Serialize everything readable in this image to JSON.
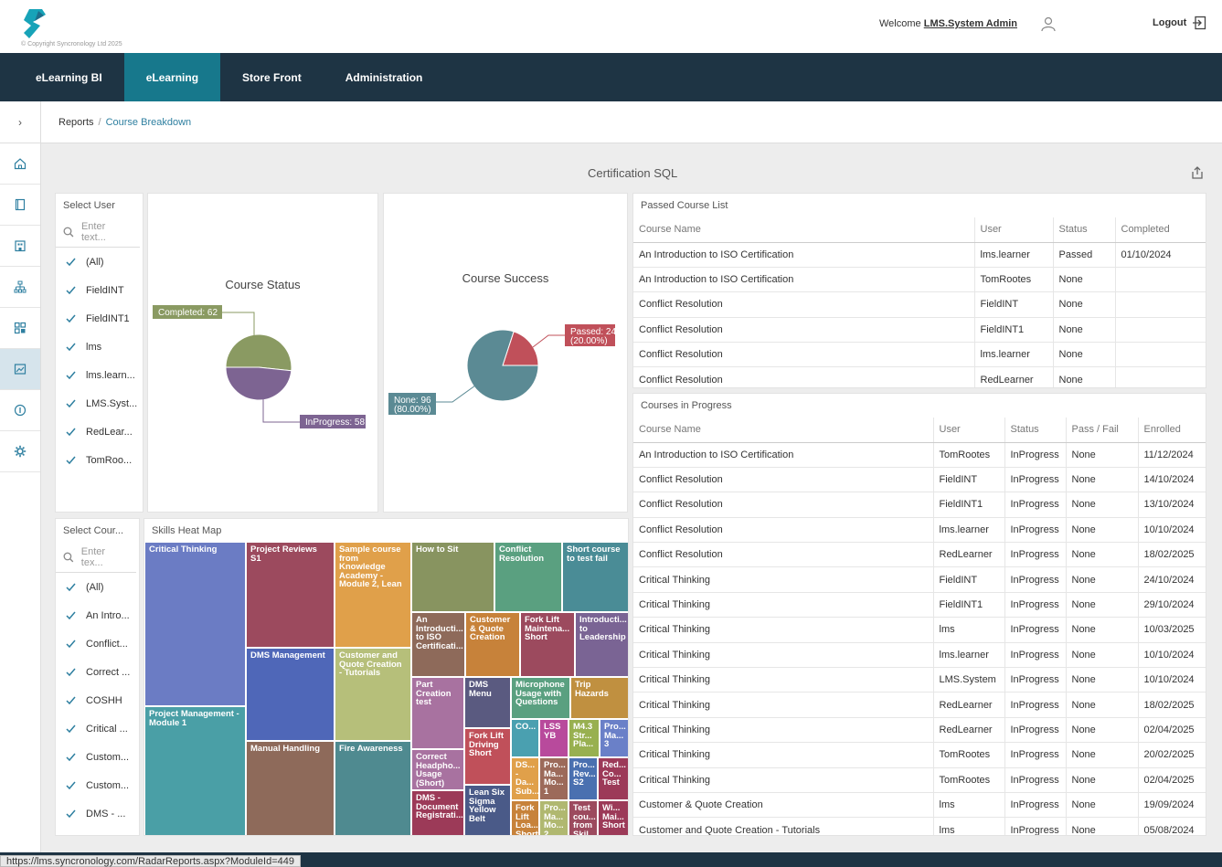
{
  "header": {
    "copyright": "© Copyright Syncronology Ltd 2025",
    "welcome_prefix": "Welcome",
    "username": "LMS.System Admin",
    "logout_label": "Logout"
  },
  "nav": {
    "tabs": [
      {
        "label": "eLearning BI"
      },
      {
        "label": "eLearning"
      },
      {
        "label": "Store Front"
      },
      {
        "label": "Administration"
      }
    ]
  },
  "breadcrumb": {
    "root": "Reports",
    "separator": "/",
    "current": "Course Breakdown"
  },
  "dashboard": {
    "title": "Certification SQL"
  },
  "user_filter": {
    "title": "Select User",
    "placeholder": "Enter text...",
    "items": [
      "(All)",
      "FieldINT",
      "FieldINT1",
      "lms",
      "lms.learn...",
      "LMS.Syst...",
      "RedLear...",
      "TomRoo..."
    ]
  },
  "course_filter": {
    "title": "Select Cour...",
    "placeholder": "Enter tex...",
    "items": [
      "(All)",
      "An Intro...",
      "Conflict...",
      "Correct ...",
      "COSHH",
      "Critical ...",
      "Custom...",
      "Custom...",
      "DMS - ..."
    ]
  },
  "course_status": {
    "title": "Course Status",
    "chart_data": {
      "type": "pie",
      "title": "Course Status",
      "slices": [
        {
          "label": "Completed: 62",
          "value": 62,
          "color": "#8a9a62"
        },
        {
          "label": "InProgress: 58",
          "value": 58,
          "color": "#7d6492"
        }
      ]
    }
  },
  "course_success": {
    "title": "Course Success",
    "chart_data": {
      "type": "pie",
      "title": "Course Success",
      "slices": [
        {
          "label": "Passed: 24",
          "pct": "(20.00%)",
          "value": 24,
          "color": "#c0505a"
        },
        {
          "label": "None: 96",
          "pct": "(80.00%)",
          "value": 96,
          "color": "#5b8a94"
        }
      ]
    }
  },
  "passed_list": {
    "title": "Passed Course List",
    "columns": [
      "Course Name",
      "User",
      "Status",
      "Completed"
    ],
    "rows": [
      [
        "An Introduction to ISO Certification",
        "lms.learner",
        "Passed",
        "01/10/2024"
      ],
      [
        "An Introduction to ISO Certification",
        "TomRootes",
        "None",
        ""
      ],
      [
        "Conflict Resolution",
        "FieldINT",
        "None",
        ""
      ],
      [
        "Conflict Resolution",
        "FieldINT1",
        "None",
        ""
      ],
      [
        "Conflict Resolution",
        "lms.learner",
        "None",
        ""
      ],
      [
        "Conflict Resolution",
        "RedLearner",
        "None",
        ""
      ]
    ]
  },
  "in_progress": {
    "title": "Courses in Progress",
    "columns": [
      "Course Name",
      "User",
      "Status",
      "Pass / Fail",
      "Enrolled"
    ],
    "rows": [
      [
        "An Introduction to ISO Certification",
        "TomRootes",
        "InProgress",
        "None",
        "11/12/2024"
      ],
      [
        "Conflict Resolution",
        "FieldINT",
        "InProgress",
        "None",
        "14/10/2024"
      ],
      [
        "Conflict Resolution",
        "FieldINT1",
        "InProgress",
        "None",
        "13/10/2024"
      ],
      [
        "Conflict Resolution",
        "lms.learner",
        "InProgress",
        "None",
        "10/10/2024"
      ],
      [
        "Conflict Resolution",
        "RedLearner",
        "InProgress",
        "None",
        "18/02/2025"
      ],
      [
        "Critical Thinking",
        "FieldINT",
        "InProgress",
        "None",
        "24/10/2024"
      ],
      [
        "Critical Thinking",
        "FieldINT1",
        "InProgress",
        "None",
        "29/10/2024"
      ],
      [
        "Critical Thinking",
        "lms",
        "InProgress",
        "None",
        "10/03/2025"
      ],
      [
        "Critical Thinking",
        "lms.learner",
        "InProgress",
        "None",
        "10/10/2024"
      ],
      [
        "Critical Thinking",
        "LMS.System",
        "InProgress",
        "None",
        "10/10/2024"
      ],
      [
        "Critical Thinking",
        "RedLearner",
        "InProgress",
        "None",
        "18/02/2025"
      ],
      [
        "Critical Thinking",
        "RedLearner",
        "InProgress",
        "None",
        "02/04/2025"
      ],
      [
        "Critical Thinking",
        "TomRootes",
        "InProgress",
        "None",
        "20/02/2025"
      ],
      [
        "Critical Thinking",
        "TomRootes",
        "InProgress",
        "None",
        "02/04/2025"
      ],
      [
        "Customer & Quote Creation",
        "lms",
        "InProgress",
        "None",
        "19/09/2024"
      ],
      [
        "Customer and Quote Creation - Tutorials",
        "lms",
        "InProgress",
        "None",
        "05/08/2024"
      ]
    ]
  },
  "heatmap": {
    "title": "Skills Heat Map",
    "cells": [
      {
        "label": "Critical Thinking",
        "color": "#6b7cc4"
      },
      {
        "label": "Project Management - Module 1",
        "color": "#4a9fa6"
      },
      {
        "label": "Project Reviews S1",
        "color": "#9c4a5e"
      },
      {
        "label": "DMS Management",
        "color": "#4f67b8"
      },
      {
        "label": "Manual Handling",
        "color": "#8e6a5a"
      },
      {
        "label": "Sample course from Knowledge Academy - Module 2, Lean",
        "color": "#e0a04a"
      },
      {
        "label": "Customer and Quote Creation - Tutorials",
        "color": "#b6bf7a"
      },
      {
        "label": "Fire Awareness",
        "color": "#4f8a90"
      },
      {
        "label": "How to Sit",
        "color": "#889460"
      },
      {
        "label": "Conflict Resolution",
        "color": "#5aa080"
      },
      {
        "label": "Short course to test fail",
        "color": "#4a8c96"
      },
      {
        "label": "An Introducti... to ISO Certificati...",
        "color": "#8e6a5a"
      },
      {
        "label": "Customer & Quote Creation",
        "color": "#c7823a"
      },
      {
        "label": "Fork Lift Maintena... Short",
        "color": "#9c4a5e"
      },
      {
        "label": "Introducti... to Leadership",
        "color": "#7a6494"
      },
      {
        "label": "Part Creation test",
        "color": "#a872a0"
      },
      {
        "label": "DMS Menu",
        "color": "#5a5a80"
      },
      {
        "label": "Microphone Usage with Questions",
        "color": "#5aa080"
      },
      {
        "label": "Trip Hazards",
        "color": "#c09040"
      },
      {
        "label": "Correct Headpho... Usage (Short)",
        "color": "#a872a0"
      },
      {
        "label": "Fork Lift Driving Short",
        "color": "#c0505a"
      },
      {
        "label": "CO...",
        "color": "#4aa0b0"
      },
      {
        "label": "LSS YB",
        "color": "#b84a9c"
      },
      {
        "label": "M4.3 Str... Pla...",
        "color": "#98b050"
      },
      {
        "label": "Pro... Ma... 3",
        "color": "#6a80c8"
      },
      {
        "label": "DMS - Document Registrati...",
        "color": "#9c3a58"
      },
      {
        "label": "Lean Six Sigma Yellow Belt",
        "color": "#4a5a88"
      },
      {
        "label": "DS... - Da... Sub...",
        "color": "#e0a04a"
      },
      {
        "label": "Pro... Ma... Mo... 1",
        "color": "#9c6a5a"
      },
      {
        "label": "Pro... Rev... S2",
        "color": "#4a70b0"
      },
      {
        "label": "Red... Co... Test",
        "color": "#9c3a58"
      },
      {
        "label": "Fork Lift Loa... Short",
        "color": "#c7823a"
      },
      {
        "label": "Pro... Ma... Mo... 2",
        "color": "#b0b870"
      },
      {
        "label": "Test cou... from Skil...",
        "color": "#9c4a5e"
      },
      {
        "label": "Wi... Mai... Short",
        "color": "#9c3a58"
      }
    ]
  },
  "statusbar": {
    "url": "https://lms.syncronology.com/RadarReports.aspx?ModuleId=449"
  }
}
